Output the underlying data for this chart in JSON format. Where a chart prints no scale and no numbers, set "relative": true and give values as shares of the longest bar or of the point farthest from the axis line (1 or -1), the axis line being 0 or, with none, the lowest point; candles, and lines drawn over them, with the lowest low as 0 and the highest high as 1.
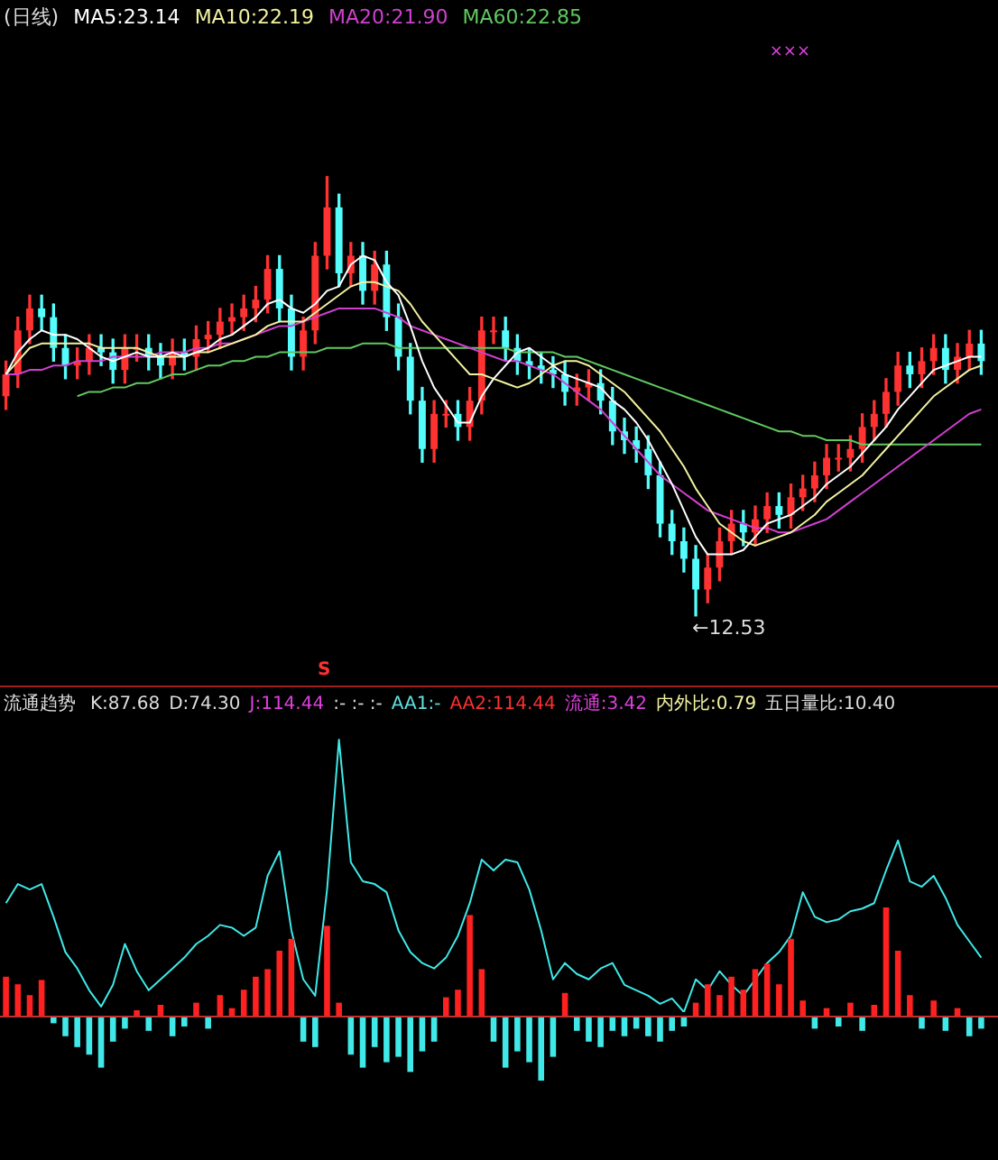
{
  "chart_data": [
    {
      "type": "candlestick",
      "title": "(日线)",
      "relative": true,
      "legend": "top left",
      "marker": "none",
      "categories": [
        null,
        null,
        null,
        null,
        null,
        null,
        null,
        null,
        null,
        null,
        null,
        null,
        null,
        null,
        null,
        null,
        null,
        null,
        null,
        null,
        null,
        null,
        null,
        null,
        null,
        null,
        null,
        null,
        null,
        null,
        null,
        null,
        null,
        null,
        null,
        null,
        null,
        null,
        null,
        null,
        null,
        null,
        null,
        null,
        null,
        null,
        null,
        null,
        null,
        null,
        null,
        null,
        null,
        null,
        null,
        null,
        null,
        null,
        null,
        null,
        null,
        null,
        null,
        null,
        null,
        null,
        null,
        null,
        null,
        null,
        null,
        null,
        null,
        null,
        null,
        null,
        null,
        null,
        null,
        null,
        null,
        null,
        null
      ],
      "ohlc": [
        [
          0.5,
          0.58,
          0.47,
          0.55
        ],
        [
          0.55,
          0.68,
          0.52,
          0.65
        ],
        [
          0.65,
          0.73,
          0.62,
          0.7
        ],
        [
          0.7,
          0.73,
          0.65,
          0.68
        ],
        [
          0.68,
          0.71,
          0.58,
          0.61
        ],
        [
          0.61,
          0.64,
          0.54,
          0.57
        ],
        [
          0.57,
          0.61,
          0.54,
          0.58
        ],
        [
          0.58,
          0.64,
          0.55,
          0.61
        ],
        [
          0.61,
          0.64,
          0.57,
          0.6
        ],
        [
          0.6,
          0.63,
          0.53,
          0.56
        ],
        [
          0.56,
          0.64,
          0.53,
          0.61
        ],
        [
          0.61,
          0.64,
          0.58,
          0.61
        ],
        [
          0.61,
          0.64,
          0.56,
          0.59
        ],
        [
          0.59,
          0.62,
          0.54,
          0.57
        ],
        [
          0.57,
          0.63,
          0.54,
          0.6
        ],
        [
          0.6,
          0.63,
          0.56,
          0.59
        ],
        [
          0.59,
          0.66,
          0.56,
          0.63
        ],
        [
          0.63,
          0.67,
          0.6,
          0.64
        ],
        [
          0.64,
          0.7,
          0.61,
          0.67
        ],
        [
          0.67,
          0.71,
          0.64,
          0.68
        ],
        [
          0.68,
          0.73,
          0.65,
          0.7
        ],
        [
          0.7,
          0.75,
          0.67,
          0.72
        ],
        [
          0.72,
          0.82,
          0.69,
          0.79
        ],
        [
          0.79,
          0.82,
          0.67,
          0.7
        ],
        [
          0.7,
          0.73,
          0.56,
          0.59
        ],
        [
          0.59,
          0.68,
          0.56,
          0.65
        ],
        [
          0.65,
          0.85,
          0.62,
          0.82
        ],
        [
          0.82,
          1.0,
          0.79,
          0.93
        ],
        [
          0.93,
          0.96,
          0.75,
          0.78
        ],
        [
          0.78,
          0.85,
          0.75,
          0.82
        ],
        [
          0.82,
          0.85,
          0.71,
          0.74
        ],
        [
          0.74,
          0.83,
          0.71,
          0.8
        ],
        [
          0.8,
          0.83,
          0.65,
          0.68
        ],
        [
          0.68,
          0.71,
          0.56,
          0.59
        ],
        [
          0.59,
          0.62,
          0.46,
          0.49
        ],
        [
          0.49,
          0.52,
          0.35,
          0.38
        ],
        [
          0.38,
          0.49,
          0.35,
          0.46
        ],
        [
          0.46,
          0.49,
          0.43,
          0.46
        ],
        [
          0.46,
          0.49,
          0.4,
          0.43
        ],
        [
          0.43,
          0.52,
          0.4,
          0.49
        ],
        [
          0.49,
          0.68,
          0.46,
          0.65
        ],
        [
          0.65,
          0.68,
          0.62,
          0.65
        ],
        [
          0.65,
          0.68,
          0.58,
          0.61
        ],
        [
          0.61,
          0.64,
          0.55,
          0.58
        ],
        [
          0.58,
          0.61,
          0.54,
          0.57
        ],
        [
          0.57,
          0.6,
          0.53,
          0.56
        ],
        [
          0.56,
          0.59,
          0.52,
          0.55
        ],
        [
          0.55,
          0.58,
          0.48,
          0.51
        ],
        [
          0.51,
          0.55,
          0.48,
          0.52
        ],
        [
          0.52,
          0.56,
          0.49,
          0.53
        ],
        [
          0.53,
          0.56,
          0.46,
          0.49
        ],
        [
          0.49,
          0.52,
          0.39,
          0.42
        ],
        [
          0.42,
          0.45,
          0.37,
          0.4
        ],
        [
          0.4,
          0.43,
          0.35,
          0.38
        ],
        [
          0.38,
          0.41,
          0.29,
          0.32
        ],
        [
          0.32,
          0.35,
          0.18,
          0.21
        ],
        [
          0.21,
          0.24,
          0.14,
          0.17
        ],
        [
          0.17,
          0.2,
          0.1,
          0.13
        ],
        [
          0.13,
          0.16,
          0.0,
          0.06
        ],
        [
          0.06,
          0.14,
          0.03,
          0.11
        ],
        [
          0.11,
          0.2,
          0.08,
          0.17
        ],
        [
          0.17,
          0.24,
          0.14,
          0.21
        ],
        [
          0.21,
          0.24,
          0.16,
          0.19
        ],
        [
          0.19,
          0.25,
          0.16,
          0.22
        ],
        [
          0.22,
          0.28,
          0.19,
          0.25
        ],
        [
          0.25,
          0.28,
          0.2,
          0.23
        ],
        [
          0.23,
          0.3,
          0.2,
          0.27
        ],
        [
          0.27,
          0.32,
          0.24,
          0.29
        ],
        [
          0.29,
          0.35,
          0.26,
          0.32
        ],
        [
          0.32,
          0.39,
          0.29,
          0.36
        ],
        [
          0.36,
          0.39,
          0.33,
          0.36
        ],
        [
          0.36,
          0.41,
          0.33,
          0.38
        ],
        [
          0.38,
          0.46,
          0.35,
          0.43
        ],
        [
          0.43,
          0.49,
          0.4,
          0.46
        ],
        [
          0.46,
          0.54,
          0.43,
          0.51
        ],
        [
          0.51,
          0.6,
          0.48,
          0.57
        ],
        [
          0.57,
          0.6,
          0.52,
          0.55
        ],
        [
          0.55,
          0.61,
          0.52,
          0.58
        ],
        [
          0.58,
          0.64,
          0.55,
          0.61
        ],
        [
          0.61,
          0.64,
          0.53,
          0.56
        ],
        [
          0.56,
          0.62,
          0.53,
          0.59
        ],
        [
          0.59,
          0.65,
          0.56,
          0.62
        ],
        [
          0.62,
          0.65,
          0.55,
          0.58
        ]
      ],
      "series": [
        {
          "type": "line",
          "name": "MA5:23.14",
          "color": "#ffffff",
          "values": [
            0.55,
            0.6,
            0.63,
            0.65,
            0.64,
            0.64,
            0.63,
            0.61,
            0.59,
            0.58,
            0.59,
            0.6,
            0.59,
            0.59,
            0.6,
            0.59,
            0.6,
            0.61,
            0.63,
            0.64,
            0.66,
            0.68,
            0.71,
            0.72,
            0.7,
            0.69,
            0.71,
            0.74,
            0.75,
            0.8,
            0.82,
            0.81,
            0.76,
            0.73,
            0.66,
            0.58,
            0.52,
            0.48,
            0.44,
            0.44,
            0.5,
            0.54,
            0.57,
            0.6,
            0.61,
            0.59,
            0.57,
            0.55,
            0.54,
            0.53,
            0.52,
            0.49,
            0.47,
            0.44,
            0.4,
            0.35,
            0.3,
            0.24,
            0.18,
            0.14,
            0.14,
            0.14,
            0.15,
            0.18,
            0.21,
            0.22,
            0.23,
            0.25,
            0.27,
            0.3,
            0.32,
            0.34,
            0.37,
            0.4,
            0.43,
            0.47,
            0.5,
            0.53,
            0.56,
            0.57,
            0.58,
            0.59,
            0.59
          ]
        },
        {
          "type": "line",
          "name": "MA10:22.19",
          "color": "#f2f2a0",
          "values": [
            0.55,
            0.58,
            0.61,
            0.62,
            0.62,
            0.62,
            0.62,
            0.62,
            0.61,
            0.61,
            0.61,
            0.61,
            0.6,
            0.59,
            0.59,
            0.59,
            0.6,
            0.6,
            0.61,
            0.62,
            0.63,
            0.64,
            0.66,
            0.67,
            0.67,
            0.67,
            0.69,
            0.71,
            0.73,
            0.75,
            0.76,
            0.76,
            0.75,
            0.74,
            0.71,
            0.67,
            0.64,
            0.61,
            0.58,
            0.55,
            0.55,
            0.54,
            0.53,
            0.52,
            0.53,
            0.55,
            0.57,
            0.58,
            0.58,
            0.57,
            0.55,
            0.53,
            0.51,
            0.48,
            0.45,
            0.42,
            0.38,
            0.34,
            0.29,
            0.25,
            0.21,
            0.19,
            0.17,
            0.16,
            0.17,
            0.18,
            0.19,
            0.21,
            0.23,
            0.26,
            0.28,
            0.3,
            0.32,
            0.35,
            0.38,
            0.41,
            0.44,
            0.47,
            0.5,
            0.52,
            0.54,
            0.56,
            0.57
          ]
        },
        {
          "type": "line",
          "name": "MA20:21.90",
          "color": "#d040d0",
          "values": [
            0.55,
            0.55,
            0.56,
            0.56,
            0.57,
            0.57,
            0.58,
            0.58,
            0.58,
            0.59,
            0.59,
            0.59,
            0.59,
            0.6,
            0.6,
            0.6,
            0.61,
            0.61,
            0.62,
            0.62,
            0.63,
            0.64,
            0.65,
            0.66,
            0.66,
            0.67,
            0.68,
            0.69,
            0.7,
            0.7,
            0.7,
            0.7,
            0.69,
            0.68,
            0.66,
            0.65,
            0.64,
            0.63,
            0.62,
            0.61,
            0.6,
            0.59,
            0.58,
            0.58,
            0.57,
            0.56,
            0.55,
            0.53,
            0.51,
            0.49,
            0.47,
            0.44,
            0.41,
            0.38,
            0.35,
            0.32,
            0.3,
            0.28,
            0.26,
            0.24,
            0.23,
            0.22,
            0.21,
            0.2,
            0.2,
            0.19,
            0.19,
            0.2,
            0.21,
            0.22,
            0.24,
            0.26,
            0.28,
            0.3,
            0.32,
            0.34,
            0.36,
            0.38,
            0.4,
            0.42,
            0.44,
            0.46,
            0.47
          ]
        },
        {
          "type": "line",
          "name": "MA60:22.85",
          "color": "#60c860",
          "values": [
            null,
            null,
            null,
            null,
            null,
            null,
            0.5,
            0.51,
            0.51,
            0.52,
            0.52,
            0.53,
            0.53,
            0.54,
            0.55,
            0.55,
            0.56,
            0.57,
            0.57,
            0.58,
            0.58,
            0.59,
            0.59,
            0.6,
            0.6,
            0.6,
            0.6,
            0.61,
            0.61,
            0.61,
            0.62,
            0.62,
            0.62,
            0.61,
            0.61,
            0.61,
            0.61,
            0.61,
            0.61,
            0.61,
            0.61,
            0.61,
            0.61,
            0.6,
            0.6,
            0.6,
            0.6,
            0.59,
            0.59,
            0.58,
            0.57,
            0.56,
            0.55,
            0.54,
            0.53,
            0.52,
            0.51,
            0.5,
            0.49,
            0.48,
            0.47,
            0.46,
            0.45,
            0.44,
            0.43,
            0.42,
            0.42,
            0.41,
            0.41,
            0.4,
            0.4,
            0.4,
            0.39,
            0.39,
            0.39,
            0.39,
            0.39,
            0.39,
            0.39,
            0.39,
            0.39,
            0.39,
            0.39
          ]
        }
      ],
      "annotations": [
        "←12.53",
        "×××"
      ]
    },
    {
      "type": "line",
      "title": "流通趋势",
      "relative": true,
      "marker": "none",
      "categories": [
        null,
        null,
        null,
        null,
        null,
        null,
        null,
        null,
        null,
        null,
        null,
        null,
        null,
        null,
        null,
        null,
        null,
        null,
        null,
        null,
        null,
        null,
        null,
        null,
        null,
        null,
        null,
        null,
        null,
        null,
        null,
        null,
        null,
        null,
        null,
        null,
        null,
        null,
        null,
        null,
        null,
        null,
        null,
        null,
        null,
        null,
        null,
        null,
        null,
        null,
        null,
        null,
        null,
        null,
        null,
        null,
        null,
        null,
        null,
        null,
        null,
        null,
        null,
        null,
        null,
        null,
        null,
        null,
        null,
        null,
        null,
        null,
        null,
        null,
        null,
        null,
        null,
        null,
        null,
        null,
        null,
        null,
        null
      ],
      "series": [
        {
          "type": "line",
          "color": "#40e8e8",
          "values": [
            0.4,
            0.47,
            0.45,
            0.47,
            0.35,
            0.22,
            0.16,
            0.08,
            0.02,
            0.1,
            0.25,
            0.15,
            0.08,
            0.12,
            0.16,
            0.2,
            0.25,
            0.28,
            0.32,
            0.31,
            0.28,
            0.31,
            0.5,
            0.59,
            0.3,
            0.12,
            0.06,
            0.45,
            1.0,
            0.55,
            0.48,
            0.47,
            0.44,
            0.3,
            0.22,
            0.18,
            0.16,
            0.2,
            0.28,
            0.4,
            0.56,
            0.52,
            0.56,
            0.55,
            0.45,
            0.3,
            0.12,
            0.18,
            0.14,
            0.12,
            0.16,
            0.18,
            0.1,
            0.08,
            0.06,
            0.03,
            0.05,
            0.0,
            0.12,
            0.08,
            0.15,
            0.1,
            0.06,
            0.12,
            0.18,
            0.22,
            0.28,
            0.44,
            0.35,
            0.33,
            0.34,
            0.37,
            0.38,
            0.4,
            0.52,
            0.63,
            0.48,
            0.46,
            0.5,
            0.42,
            0.32,
            0.26,
            0.2
          ]
        }
      ],
      "annotations": [
        "S",
        "K:87.68",
        "D:74.30",
        "J:114.44",
        ":-  :-  :-",
        "AA1:-",
        "AA2:114.44",
        "流通:3.42",
        "内外比:0.79",
        "五日量比:10.40"
      ]
    },
    {
      "type": "bar",
      "relative": true,
      "ref_lines": [
        {
          "axis": "y",
          "value": 0,
          "color": "#c03030"
        }
      ],
      "categories": [
        null,
        null,
        null,
        null,
        null,
        null,
        null,
        null,
        null,
        null,
        null,
        null,
        null,
        null,
        null,
        null,
        null,
        null,
        null,
        null,
        null,
        null,
        null,
        null,
        null,
        null,
        null,
        null,
        null,
        null,
        null,
        null,
        null,
        null,
        null,
        null,
        null,
        null,
        null,
        null,
        null,
        null,
        null,
        null,
        null,
        null,
        null,
        null,
        null,
        null,
        null,
        null,
        null,
        null,
        null,
        null,
        null,
        null,
        null,
        null,
        null,
        null,
        null,
        null,
        null,
        null,
        null,
        null,
        null,
        null,
        null,
        null,
        null,
        null,
        null,
        null,
        null,
        null,
        null,
        null,
        null,
        null,
        null
      ],
      "values": [
        0.36,
        0.29,
        0.19,
        0.33,
        -0.07,
        -0.19,
        -0.29,
        -0.36,
        -0.48,
        -0.24,
        -0.12,
        0.05,
        -0.14,
        0.1,
        -0.19,
        -0.1,
        0.12,
        -0.12,
        0.19,
        0.07,
        0.24,
        0.36,
        0.43,
        0.6,
        0.71,
        -0.24,
        -0.29,
        0.83,
        0.12,
        -0.36,
        -0.48,
        -0.29,
        -0.43,
        -0.38,
        -0.52,
        -0.33,
        -0.24,
        0.17,
        0.24,
        0.93,
        0.43,
        -0.24,
        -0.48,
        -0.33,
        -0.43,
        -0.6,
        -0.38,
        0.21,
        -0.14,
        -0.24,
        -0.29,
        -0.14,
        -0.19,
        -0.12,
        -0.19,
        -0.24,
        -0.14,
        -0.1,
        0.12,
        0.29,
        0.19,
        0.36,
        0.24,
        0.43,
        0.48,
        0.29,
        0.71,
        0.14,
        -0.12,
        0.07,
        -0.1,
        0.12,
        -0.14,
        0.1,
        1.0,
        0.6,
        0.19,
        -0.12,
        0.14,
        -0.14,
        0.07,
        -0.19,
        -0.12
      ],
      "colors": [
        "#ff2020",
        "#ff2020",
        "#ff2020",
        "#ff2020",
        "#40e8e8",
        "#40e8e8",
        "#40e8e8",
        "#40e8e8",
        "#40e8e8",
        "#40e8e8",
        "#40e8e8",
        "#ff2020",
        "#40e8e8",
        "#ff2020",
        "#40e8e8",
        "#40e8e8",
        "#ff2020",
        "#40e8e8",
        "#ff2020",
        "#ff2020",
        "#ff2020",
        "#ff2020",
        "#ff2020",
        "#ff2020",
        "#ff2020",
        "#40e8e8",
        "#40e8e8",
        "#ff2020",
        "#ff2020",
        "#40e8e8",
        "#40e8e8",
        "#40e8e8",
        "#40e8e8",
        "#40e8e8",
        "#40e8e8",
        "#40e8e8",
        "#40e8e8",
        "#ff2020",
        "#ff2020",
        "#ff2020",
        "#ff2020",
        "#40e8e8",
        "#40e8e8",
        "#40e8e8",
        "#40e8e8",
        "#40e8e8",
        "#40e8e8",
        "#ff2020",
        "#40e8e8",
        "#40e8e8",
        "#40e8e8",
        "#40e8e8",
        "#40e8e8",
        "#40e8e8",
        "#40e8e8",
        "#40e8e8",
        "#40e8e8",
        "#40e8e8",
        "#ff2020",
        "#ff2020",
        "#ff2020",
        "#ff2020",
        "#ff2020",
        "#ff2020",
        "#ff2020",
        "#ff2020",
        "#ff2020",
        "#ff2020",
        "#40e8e8",
        "#ff2020",
        "#40e8e8",
        "#ff2020",
        "#40e8e8",
        "#ff2020",
        "#ff2020",
        "#ff2020",
        "#ff2020",
        "#40e8e8",
        "#ff2020",
        "#40e8e8",
        "#ff2020",
        "#40e8e8",
        "#40e8e8"
      ]
    }
  ]
}
